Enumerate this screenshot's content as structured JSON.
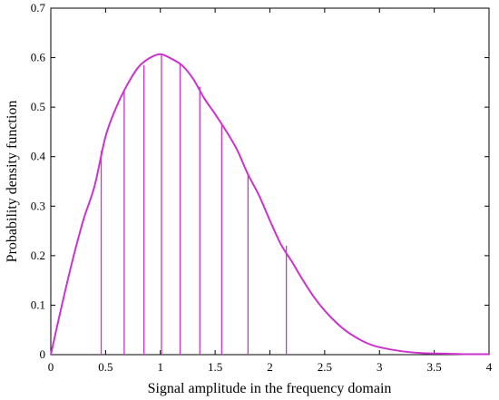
{
  "chart_data": {
    "type": "line",
    "title": "",
    "xlabel": "Signal amplitude in the frequency domain",
    "ylabel": "Probability density function",
    "xlim": [
      0,
      4
    ],
    "ylim": [
      0,
      0.7
    ],
    "x_ticks": [
      "0",
      "0.5",
      "1",
      "1.5",
      "2",
      "2.5",
      "3",
      "3.5",
      "4"
    ],
    "y_ticks": [
      "0",
      "0.1",
      "0.2",
      "0.3",
      "0.4",
      "0.5",
      "0.6",
      "0.7"
    ],
    "grid": false,
    "legend": "none",
    "series": [
      {
        "x": [
          0,
          0.1,
          0.2,
          0.3,
          0.4,
          0.5,
          0.6,
          0.7,
          0.8,
          0.9,
          1.0,
          1.1,
          1.2,
          1.3,
          1.4,
          1.5,
          1.6,
          1.7,
          1.8,
          1.9,
          2.0,
          2.1,
          2.2,
          2.3,
          2.4,
          2.5,
          2.6,
          2.7,
          2.8,
          2.9,
          3.0,
          3.2,
          3.4,
          3.6,
          3.8,
          4.0
        ],
        "y": [
          0,
          0.099,
          0.192,
          0.274,
          0.341,
          0.441,
          0.501,
          0.546,
          0.581,
          0.599,
          0.607,
          0.598,
          0.584,
          0.557,
          0.518,
          0.486,
          0.452,
          0.414,
          0.364,
          0.322,
          0.271,
          0.223,
          0.188,
          0.151,
          0.117,
          0.089,
          0.066,
          0.047,
          0.033,
          0.022,
          0.015,
          0.007,
          0.003,
          0.002,
          0.001,
          0.001
        ]
      }
    ],
    "stems": [
      {
        "x": 0.46,
        "y": 0.412
      },
      {
        "x": 0.67,
        "y": 0.532
      },
      {
        "x": 0.85,
        "y": 0.585
      },
      {
        "x": 1.01,
        "y": 0.606
      },
      {
        "x": 1.18,
        "y": 0.588
      },
      {
        "x": 1.36,
        "y": 0.541
      },
      {
        "x": 1.56,
        "y": 0.465
      },
      {
        "x": 1.8,
        "y": 0.362
      },
      {
        "x": 2.15,
        "y": 0.22
      }
    ],
    "color": "#cc33cc"
  }
}
